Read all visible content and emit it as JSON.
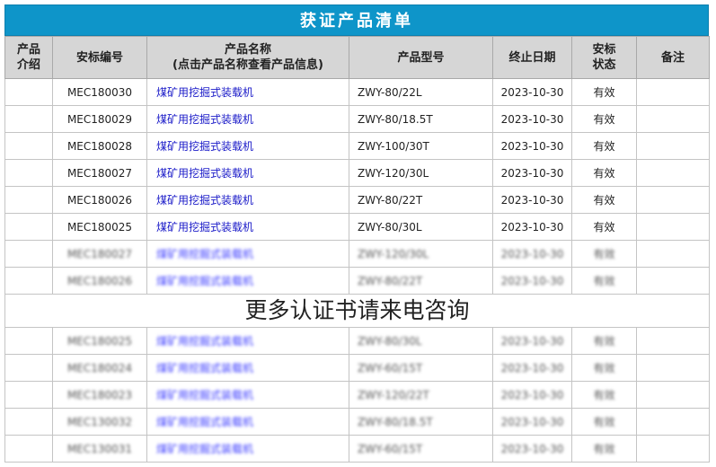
{
  "title": "获证产品清单",
  "headers": [
    "产品介绍",
    "安标编号",
    "产品名称",
    "(点击产品名称查看产品信息)",
    "产品型号",
    "终止日期",
    "安标状态",
    "备注"
  ],
  "rows": [
    {
      "id": "MEC180030",
      "name": "煤矿用挖掘式装载机",
      "model": "ZWY-80/22L",
      "date": "2023-10-30",
      "status": "有效"
    },
    {
      "id": "MEC180029",
      "name": "煤矿用挖掘式装载机",
      "model": "ZWY-80/18.5T",
      "date": "2023-10-30",
      "status": "有效"
    },
    {
      "id": "MEC180028",
      "name": "煤矿用挖掘式装载机",
      "model": "ZWY-100/30T",
      "date": "2023-10-30",
      "status": "有效"
    },
    {
      "id": "MEC180027",
      "name": "煤矿用挖掘式装载机",
      "model": "ZWY-120/30L",
      "date": "2023-10-30",
      "status": "有效"
    },
    {
      "id": "MEC180026",
      "name": "煤矿用挖掘式装载机",
      "model": "ZWY-80/22T",
      "date": "2023-10-30",
      "status": "有效"
    },
    {
      "id": "MEC180025",
      "name": "煤矿用挖掘式装载机",
      "model": "ZWY-80/30L",
      "date": "2023-10-30",
      "status": "有效"
    }
  ],
  "blurred_rows": [
    {
      "id": "MEC180027",
      "name": "煤矿用挖掘式装载机",
      "model": "ZWY-120/30L",
      "date": "2023-10-30",
      "status": "有效"
    },
    {
      "id": "MEC180026",
      "name": "煤矿用挖掘式装载机",
      "model": "ZWY-80/22T",
      "date": "2023-10-30",
      "status": "有效"
    },
    {
      "id": "MEC180025",
      "name": "煤矿用挖掘式装载机",
      "model": "ZWY-80/30L",
      "date": "2023-10-30",
      "status": "有效"
    },
    {
      "id": "MEC180024",
      "name": "煤矿用挖掘式装载机",
      "model": "ZWY-60/15T",
      "date": "2023-10-30",
      "status": "有效"
    },
    {
      "id": "MEC180023",
      "name": "煤矿用挖掘式装载机",
      "model": "ZWY-120/22T",
      "date": "2023-10-30",
      "status": "有效"
    },
    {
      "id": "MEC130032",
      "name": "煤矿用挖掘式装载机",
      "model": "ZWY-80/18.5T",
      "date": "2023-10-30",
      "status": "有效"
    },
    {
      "id": "MEC130031",
      "name": "煤矿用挖掘式装载机",
      "model": "ZWY-60/15T",
      "date": "2023-10-30",
      "status": "有效"
    }
  ],
  "overlay_text": "更多认证书请来电咨询",
  "colors": {
    "title_bg": "#0e95c9",
    "link": "#1a1ac8",
    "header_bg": "#d6d6d6"
  }
}
